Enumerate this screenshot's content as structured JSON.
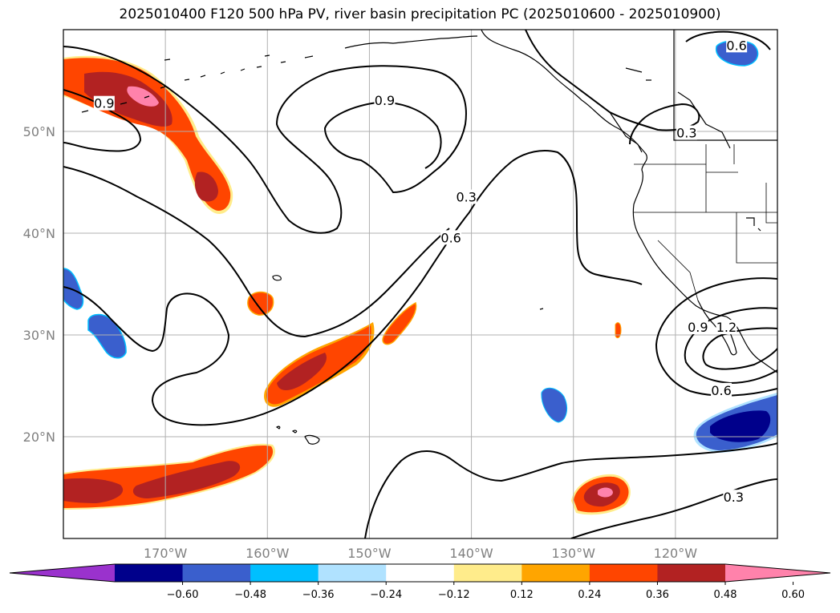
{
  "title": "2025010400 F120 500 hPa PV, river basin precipitation PC (2025010600 - 2025010900)",
  "map": {
    "extent": {
      "lon_min": -180,
      "lon_max": -110,
      "lat_min": 10,
      "lat_max": 60
    },
    "lat_labels": [
      {
        "lat": 50,
        "text": "50°N"
      },
      {
        "lat": 40,
        "text": "40°N"
      },
      {
        "lat": 30,
        "text": "30°N"
      },
      {
        "lat": 20,
        "text": "20°N"
      }
    ],
    "lon_labels": [
      {
        "lon": -170,
        "text": "170°W"
      },
      {
        "lon": -160,
        "text": "160°W"
      },
      {
        "lon": -150,
        "text": "150°W"
      },
      {
        "lon": -140,
        "text": "140°W"
      },
      {
        "lon": -130,
        "text": "130°W"
      },
      {
        "lon": -120,
        "text": "120°W"
      }
    ],
    "gridlines": true,
    "contour_labels": [
      {
        "text": "0.9",
        "lon": -176.0,
        "lat": 52.7
      },
      {
        "text": "0.9",
        "lon": -148.5,
        "lat": 53.0
      },
      {
        "text": "0.6",
        "lon": -142.0,
        "lat": 39.5
      },
      {
        "text": "0.3",
        "lon": -140.5,
        "lat": 43.5
      },
      {
        "text": "0.6",
        "lon": -114.0,
        "lat": 58.4
      },
      {
        "text": "0.3",
        "lon": -118.9,
        "lat": 49.8
      },
      {
        "text": "0.9",
        "lon": -117.8,
        "lat": 30.7
      },
      {
        "text": "1.2",
        "lon": -115.0,
        "lat": 30.7
      },
      {
        "text": "0.6",
        "lon": -115.5,
        "lat": 24.5
      },
      {
        "text": "0.3",
        "lon": -114.3,
        "lat": 14.0
      }
    ]
  },
  "colorbar": {
    "colors": [
      "#9a32cd",
      "#00008b",
      "#3a5fcd",
      "#00bfff",
      "#b0e2ff",
      "#ffffff",
      "#ffec8b",
      "#ffa500",
      "#ff4500",
      "#b22222",
      "#ff82ab"
    ],
    "ticks": [
      "−0.60",
      "−0.48",
      "−0.36",
      "−0.24",
      "−0.12",
      "0.12",
      "0.24",
      "0.36",
      "0.48",
      "0.60"
    ]
  }
}
